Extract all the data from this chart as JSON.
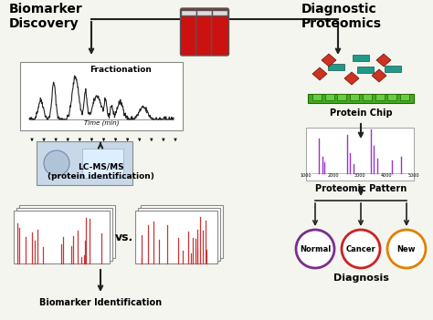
{
  "bg_color": "#f5f5f0",
  "title_left": "Biomarker\nDiscovery",
  "title_right": "Diagnostic\nProteomics",
  "label_fractionation": "Fractionation",
  "label_time": "Time (min)",
  "label_lcmsms": "LC-MS/MS\n(protein identification)",
  "label_vs": "vs.",
  "label_biomarker": "Biomarker Identification",
  "label_protein_chip": "Protein Chip",
  "label_proteomic_pattern": "Proteomic Pattern",
  "label_diagnosis": "Diagnosis",
  "label_normal": "Normal",
  "label_cancer": "Cancer",
  "label_new": "New",
  "arrow_color": "#222222",
  "circle_normal_color": "#7b2d8b",
  "circle_cancer_color": "#cc2222",
  "circle_new_color": "#e08000",
  "ms_spectrum_color": "#cc3333",
  "protein_chip_spectrum_color": "#9933cc",
  "fractionation_color": "#222222",
  "tube_body_color": "#cc1111",
  "tube_border_color": "#555555",
  "chip_green_color": "#44aa22",
  "chip_teal_color": "#229988",
  "chip_red_color": "#cc3322"
}
